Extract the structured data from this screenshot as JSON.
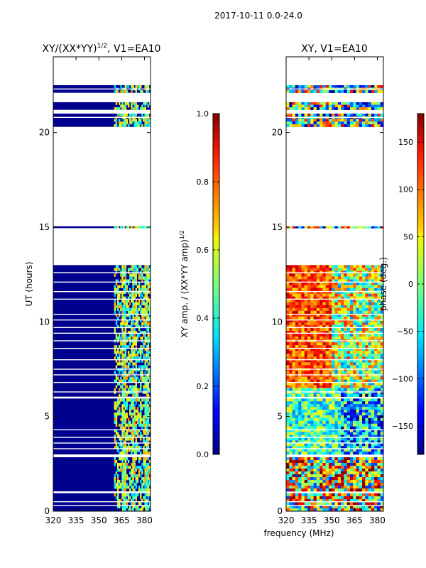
{
  "suptitle": "2017-10-11 0.0-24.0",
  "shared_xlabel": "frequency (MHz)",
  "chart_data": [
    {
      "type": "heatmap",
      "title_main": "XY/(XX*YY)",
      "title_exp": "1/2",
      "title_rest": ", V1=EA10",
      "ylabel": "UT (hours)",
      "xlim": [
        320,
        384
      ],
      "ylim": [
        0,
        24
      ],
      "xticks": [
        320,
        335,
        350,
        365,
        380
      ],
      "xticklabels": [
        "320",
        "335",
        "350",
        "365",
        "380"
      ],
      "yticks": [
        0,
        5,
        10,
        15,
        20
      ],
      "yticklabels": [
        "0",
        "5",
        "10",
        "15",
        "20"
      ],
      "data_blocks_hours": [
        [
          0.0,
          0.95
        ],
        [
          1.05,
          2.85
        ],
        [
          3.0,
          5.95
        ],
        [
          6.05,
          13.0
        ],
        [
          14.95,
          15.05
        ],
        [
          20.3,
          21.0
        ],
        [
          21.2,
          21.6
        ],
        [
          22.1,
          22.5
        ]
      ],
      "gap_lines_hours": [
        0.3,
        0.5,
        3.3,
        3.6,
        3.9,
        4.3,
        6.3,
        6.8,
        7.2,
        7.5,
        8.0,
        8.6,
        9.0,
        9.4,
        9.7,
        10.1,
        10.4,
        11.2,
        11.6,
        12.1,
        12.6,
        20.8,
        22.3
      ],
      "colorbar": {
        "label_main": "XY amp. / (XX*YY amp)",
        "label_exp": "1/2",
        "range": [
          0.0,
          1.0
        ],
        "ticks": [
          0.0,
          0.2,
          0.4,
          0.6,
          0.8,
          1.0
        ],
        "ticklabels": [
          "0.0",
          "0.2",
          "0.4",
          "0.6",
          "0.8",
          "1.0"
        ]
      }
    },
    {
      "type": "heatmap",
      "title": "XY, V1=EA10",
      "xlim": [
        320,
        384
      ],
      "ylim": [
        0,
        24
      ],
      "xticks": [
        320,
        335,
        350,
        365,
        380
      ],
      "xticklabels": [
        "320",
        "335",
        "350",
        "365",
        "380"
      ],
      "yticks": [
        0,
        5,
        10,
        15,
        20
      ],
      "yticklabels": [
        "0",
        "5",
        "10",
        "15",
        "20"
      ],
      "colorbar": {
        "label": "phase (deg.)",
        "range": [
          -180,
          180
        ],
        "ticks": [
          -150,
          -100,
          -50,
          0,
          50,
          100,
          150
        ],
        "ticklabels": [
          "−150",
          "−100",
          "−50",
          "0",
          "50",
          "100",
          "150"
        ]
      }
    }
  ]
}
